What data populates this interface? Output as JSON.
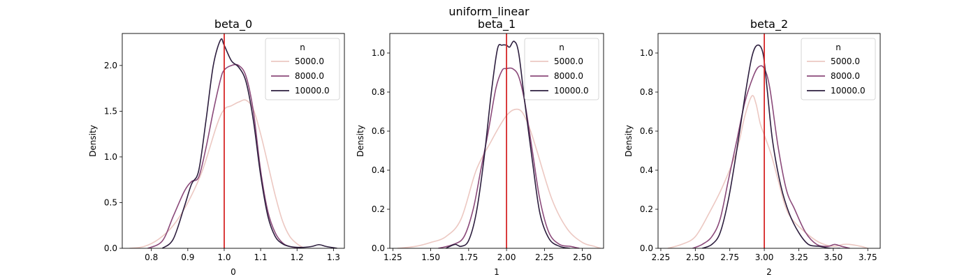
{
  "figure": {
    "suptitle": "uniform_linear"
  },
  "chart_data": [
    {
      "type": "line",
      "title": "beta_0",
      "xlabel": "0",
      "ylabel": "Density",
      "xlim": [
        0.72,
        1.33
      ],
      "ylim": [
        0,
        2.35
      ],
      "xticks": [
        0.8,
        0.9,
        1.0,
        1.1,
        1.2,
        1.3
      ],
      "xtick_labels": [
        "0.8",
        "0.9",
        "1.0",
        "1.1",
        "1.2",
        "1.3"
      ],
      "yticks": [
        0.0,
        0.5,
        1.0,
        1.5,
        2.0
      ],
      "ytick_labels": [
        "0.0",
        "0.5",
        "1.0",
        "1.5",
        "2.0"
      ],
      "reference_line": {
        "x": 1.0,
        "color": "#d62728"
      },
      "legend": {
        "title": "n",
        "position": "top-right"
      },
      "series": [
        {
          "name": "5000.0",
          "color": "#ecc8c2",
          "x": [
            0.74,
            0.78,
            0.82,
            0.86,
            0.9,
            0.94,
            0.98,
            1.0,
            1.02,
            1.04,
            1.06,
            1.08,
            1.1,
            1.12,
            1.14,
            1.16,
            1.18,
            1.2,
            1.22
          ],
          "y": [
            0.0,
            0.02,
            0.1,
            0.25,
            0.5,
            0.85,
            1.35,
            1.52,
            1.56,
            1.6,
            1.62,
            1.52,
            1.25,
            0.92,
            0.58,
            0.3,
            0.13,
            0.05,
            0.0
          ]
        },
        {
          "name": "8000.0",
          "color": "#8b4a7a",
          "x": [
            0.79,
            0.83,
            0.86,
            0.89,
            0.91,
            0.93,
            0.95,
            0.97,
            0.99,
            1.0,
            1.02,
            1.04,
            1.06,
            1.08,
            1.1,
            1.12,
            1.14,
            1.16,
            1.18,
            1.21
          ],
          "y": [
            0.0,
            0.08,
            0.35,
            0.62,
            0.73,
            0.78,
            1.1,
            1.5,
            1.85,
            1.95,
            2.0,
            2.0,
            1.88,
            1.5,
            0.85,
            0.4,
            0.17,
            0.06,
            0.02,
            0.0
          ]
        },
        {
          "name": "10000.0",
          "color": "#2d1e3e",
          "x": [
            0.83,
            0.86,
            0.89,
            0.91,
            0.93,
            0.95,
            0.97,
            0.99,
            1.0,
            1.02,
            1.04,
            1.06,
            1.08,
            1.1,
            1.12,
            1.14,
            1.16,
            1.18,
            1.21,
            1.24,
            1.26,
            1.28,
            1.31
          ],
          "y": [
            0.0,
            0.1,
            0.45,
            0.7,
            0.85,
            1.4,
            2.0,
            2.28,
            2.22,
            2.05,
            1.98,
            1.82,
            1.4,
            0.8,
            0.35,
            0.13,
            0.05,
            0.02,
            0.01,
            0.02,
            0.04,
            0.02,
            0.0
          ]
        }
      ]
    },
    {
      "type": "line",
      "title": "beta_1",
      "xlabel": "1",
      "ylabel": "Density",
      "xlim": [
        1.23,
        2.64
      ],
      "ylim": [
        0,
        1.1
      ],
      "xticks": [
        1.25,
        1.5,
        1.75,
        2.0,
        2.25,
        2.5
      ],
      "xtick_labels": [
        "1.25",
        "1.50",
        "1.75",
        "2.00",
        "2.25",
        "2.50"
      ],
      "yticks": [
        0.0,
        0.2,
        0.4,
        0.6,
        0.8,
        1.0
      ],
      "ytick_labels": [
        "0.0",
        "0.2",
        "0.4",
        "0.6",
        "0.8",
        "1.0"
      ],
      "reference_line": {
        "x": 2.0,
        "color": "#d62728"
      },
      "legend": {
        "title": "n",
        "position": "top-right"
      },
      "series": [
        {
          "name": "5000.0",
          "color": "#ecc8c2",
          "x": [
            1.28,
            1.4,
            1.5,
            1.6,
            1.7,
            1.8,
            1.9,
            1.95,
            2.0,
            2.05,
            2.1,
            2.15,
            2.2,
            2.3,
            2.4,
            2.5,
            2.58,
            2.62
          ],
          "y": [
            0.0,
            0.01,
            0.03,
            0.06,
            0.15,
            0.4,
            0.55,
            0.62,
            0.68,
            0.71,
            0.7,
            0.62,
            0.5,
            0.25,
            0.1,
            0.03,
            0.01,
            0.0
          ]
        },
        {
          "name": "8000.0",
          "color": "#8b4a7a",
          "x": [
            1.55,
            1.65,
            1.72,
            1.78,
            1.83,
            1.88,
            1.93,
            1.97,
            2.0,
            2.04,
            2.08,
            2.12,
            2.17,
            2.22,
            2.28,
            2.35,
            2.42,
            2.48
          ],
          "y": [
            0.0,
            0.02,
            0.06,
            0.2,
            0.4,
            0.6,
            0.82,
            0.91,
            0.92,
            0.92,
            0.88,
            0.75,
            0.5,
            0.25,
            0.08,
            0.02,
            0.01,
            0.0
          ]
        },
        {
          "name": "10000.0",
          "color": "#2d1e3e",
          "x": [
            1.6,
            1.66,
            1.7,
            1.75,
            1.8,
            1.85,
            1.9,
            1.94,
            1.97,
            2.0,
            2.02,
            2.05,
            2.08,
            2.12,
            2.17,
            2.22,
            2.28,
            2.35,
            2.42
          ],
          "y": [
            0.0,
            0.02,
            0.01,
            0.04,
            0.18,
            0.45,
            0.8,
            1.02,
            1.04,
            1.04,
            1.03,
            1.06,
            1.0,
            0.75,
            0.45,
            0.18,
            0.05,
            0.01,
            0.0
          ]
        }
      ]
    },
    {
      "type": "line",
      "title": "beta_2",
      "xlabel": "2",
      "ylabel": "Density",
      "xlim": [
        2.23,
        3.84
      ],
      "ylim": [
        0,
        1.1
      ],
      "xticks": [
        2.25,
        2.5,
        2.75,
        3.0,
        3.25,
        3.5,
        3.75
      ],
      "xtick_labels": [
        "2.25",
        "2.50",
        "2.75",
        "3.00",
        "3.25",
        "3.50",
        "3.75"
      ],
      "yticks": [
        0.0,
        0.2,
        0.4,
        0.6,
        0.8,
        1.0
      ],
      "ytick_labels": [
        "0.0",
        "0.2",
        "0.4",
        "0.6",
        "0.8",
        "1.0"
      ],
      "reference_line": {
        "x": 3.0,
        "color": "#d62728"
      },
      "legend": {
        "title": "n",
        "position": "top-right"
      },
      "series": [
        {
          "name": "5000.0",
          "color": "#ecc8c2",
          "x": [
            2.3,
            2.4,
            2.5,
            2.6,
            2.7,
            2.8,
            2.86,
            2.91,
            2.94,
            2.97,
            3.0,
            3.05,
            3.1,
            3.15,
            3.2,
            3.3,
            3.4,
            3.5,
            3.57,
            3.62,
            3.7,
            3.75
          ],
          "y": [
            0.0,
            0.02,
            0.06,
            0.18,
            0.32,
            0.5,
            0.68,
            0.78,
            0.74,
            0.64,
            0.58,
            0.48,
            0.35,
            0.22,
            0.15,
            0.08,
            0.03,
            0.01,
            0.02,
            0.02,
            0.01,
            0.0
          ]
        },
        {
          "name": "8000.0",
          "color": "#8b4a7a",
          "x": [
            2.48,
            2.55,
            2.62,
            2.68,
            2.74,
            2.8,
            2.86,
            2.92,
            2.96,
            3.0,
            3.04,
            3.1,
            3.16,
            3.22,
            3.3,
            3.38,
            3.46,
            3.51,
            3.56,
            3.62
          ],
          "y": [
            0.0,
            0.02,
            0.06,
            0.15,
            0.35,
            0.55,
            0.75,
            0.88,
            0.93,
            0.92,
            0.82,
            0.52,
            0.3,
            0.2,
            0.08,
            0.02,
            0.01,
            0.02,
            0.01,
            0.0
          ]
        },
        {
          "name": "10000.0",
          "color": "#2d1e3e",
          "x": [
            2.55,
            2.62,
            2.68,
            2.74,
            2.8,
            2.86,
            2.91,
            2.95,
            2.99,
            3.02,
            3.06,
            3.12,
            3.18,
            3.25,
            3.32,
            3.4,
            3.48,
            3.55
          ],
          "y": [
            0.0,
            0.02,
            0.08,
            0.25,
            0.5,
            0.78,
            0.98,
            1.04,
            1.0,
            0.82,
            0.55,
            0.32,
            0.18,
            0.08,
            0.02,
            0.01,
            0.0,
            0.0
          ]
        }
      ]
    }
  ]
}
